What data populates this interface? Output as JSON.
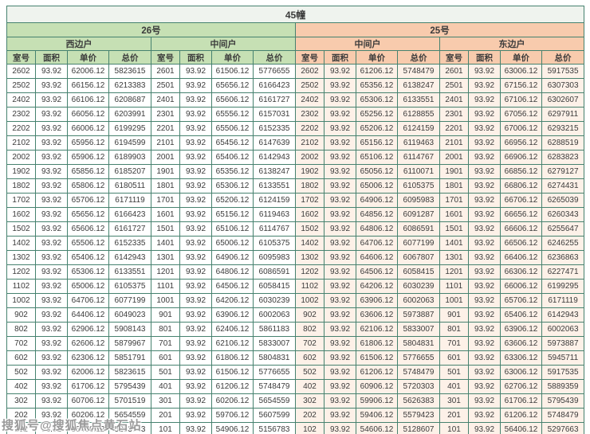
{
  "title": "45幢",
  "sections": [
    {
      "building": "26号",
      "units": [
        "西边户",
        "中间户"
      ]
    },
    {
      "building": "25号",
      "units": [
        "中间户",
        "东边户"
      ]
    }
  ],
  "column_headers": [
    "室号",
    "面积",
    "单价",
    "总价"
  ],
  "watermark": "搜狐号@搜狐焦点黄石站",
  "colors": {
    "border": "#46826f",
    "title_bg": "#eff3ee",
    "header_green": "#c6e0b4",
    "header_peach": "#f8cbad",
    "cell_green_bg": "#ffffff",
    "cell_peach_bg": "#fdf1e8",
    "text": "#3b3b3b"
  },
  "table": {
    "rows": [
      [
        [
          "2602",
          "93.92",
          "62006.12",
          "5823615"
        ],
        [
          "2601",
          "93.92",
          "61506.12",
          "5776655"
        ],
        [
          "2602",
          "93.92",
          "61206.12",
          "5748479"
        ],
        [
          "2601",
          "93.92",
          "63006.12",
          "5917535"
        ]
      ],
      [
        [
          "2502",
          "93.92",
          "66156.12",
          "6213383"
        ],
        [
          "2501",
          "93.92",
          "65656.12",
          "6166423"
        ],
        [
          "2502",
          "93.92",
          "65356.12",
          "6138247"
        ],
        [
          "2501",
          "93.92",
          "67156.12",
          "6307303"
        ]
      ],
      [
        [
          "2402",
          "93.92",
          "66106.12",
          "6208687"
        ],
        [
          "2401",
          "93.92",
          "65606.12",
          "6161727"
        ],
        [
          "2402",
          "93.92",
          "65306.12",
          "6133551"
        ],
        [
          "2401",
          "93.92",
          "67106.12",
          "6302607"
        ]
      ],
      [
        [
          "2302",
          "93.92",
          "66056.12",
          "6203991"
        ],
        [
          "2301",
          "93.92",
          "65556.12",
          "6157031"
        ],
        [
          "2302",
          "93.92",
          "65256.12",
          "6128855"
        ],
        [
          "2301",
          "93.92",
          "67056.12",
          "6297911"
        ]
      ],
      [
        [
          "2202",
          "93.92",
          "66006.12",
          "6199295"
        ],
        [
          "2201",
          "93.92",
          "65506.12",
          "6152335"
        ],
        [
          "2202",
          "93.92",
          "65206.12",
          "6124159"
        ],
        [
          "2201",
          "93.92",
          "67006.12",
          "6293215"
        ]
      ],
      [
        [
          "2102",
          "93.92",
          "65956.12",
          "6194599"
        ],
        [
          "2101",
          "93.92",
          "65456.12",
          "6147639"
        ],
        [
          "2102",
          "93.92",
          "65156.12",
          "6119463"
        ],
        [
          "2101",
          "93.92",
          "66956.12",
          "6288519"
        ]
      ],
      [
        [
          "2002",
          "93.92",
          "65906.12",
          "6189903"
        ],
        [
          "2001",
          "93.92",
          "65406.12",
          "6142943"
        ],
        [
          "2002",
          "93.92",
          "65106.12",
          "6114767"
        ],
        [
          "2001",
          "93.92",
          "66906.12",
          "6283823"
        ]
      ],
      [
        [
          "1902",
          "93.92",
          "65856.12",
          "6185207"
        ],
        [
          "1901",
          "93.92",
          "65356.12",
          "6138247"
        ],
        [
          "1902",
          "93.92",
          "65056.12",
          "6110071"
        ],
        [
          "1901",
          "93.92",
          "66856.12",
          "6279127"
        ]
      ],
      [
        [
          "1802",
          "93.92",
          "65806.12",
          "6180511"
        ],
        [
          "1801",
          "93.92",
          "65306.12",
          "6133551"
        ],
        [
          "1802",
          "93.92",
          "65006.12",
          "6105375"
        ],
        [
          "1801",
          "93.92",
          "66806.12",
          "6274431"
        ]
      ],
      [
        [
          "1702",
          "93.92",
          "65706.12",
          "6171119"
        ],
        [
          "1701",
          "93.92",
          "65206.12",
          "6124159"
        ],
        [
          "1702",
          "93.92",
          "64906.12",
          "6095983"
        ],
        [
          "1701",
          "93.92",
          "66706.12",
          "6265039"
        ]
      ],
      [
        [
          "1602",
          "93.92",
          "65656.12",
          "6166423"
        ],
        [
          "1601",
          "93.92",
          "65156.12",
          "6119463"
        ],
        [
          "1602",
          "93.92",
          "64856.12",
          "6091287"
        ],
        [
          "1601",
          "93.92",
          "66656.12",
          "6260343"
        ]
      ],
      [
        [
          "1502",
          "93.92",
          "65606.12",
          "6161727"
        ],
        [
          "1501",
          "93.92",
          "65106.12",
          "6114767"
        ],
        [
          "1502",
          "93.92",
          "64806.12",
          "6086591"
        ],
        [
          "1501",
          "93.92",
          "66606.12",
          "6255647"
        ]
      ],
      [
        [
          "1402",
          "93.92",
          "65506.12",
          "6152335"
        ],
        [
          "1401",
          "93.92",
          "65006.12",
          "6105375"
        ],
        [
          "1402",
          "93.92",
          "64706.12",
          "6077199"
        ],
        [
          "1401",
          "93.92",
          "66506.12",
          "6246255"
        ]
      ],
      [
        [
          "1302",
          "93.92",
          "65406.12",
          "6142943"
        ],
        [
          "1301",
          "93.92",
          "64906.12",
          "6095983"
        ],
        [
          "1302",
          "93.92",
          "64606.12",
          "6067807"
        ],
        [
          "1301",
          "93.92",
          "66406.12",
          "6236863"
        ]
      ],
      [
        [
          "1202",
          "93.92",
          "65306.12",
          "6133551"
        ],
        [
          "1201",
          "93.92",
          "64806.12",
          "6086591"
        ],
        [
          "1202",
          "93.92",
          "64506.12",
          "6058415"
        ],
        [
          "1201",
          "93.92",
          "66306.12",
          "6227471"
        ]
      ],
      [
        [
          "1102",
          "93.92",
          "65006.12",
          "6105375"
        ],
        [
          "1101",
          "93.92",
          "64506.12",
          "6058415"
        ],
        [
          "1102",
          "93.92",
          "64206.12",
          "6030239"
        ],
        [
          "1101",
          "93.92",
          "66006.12",
          "6199295"
        ]
      ],
      [
        [
          "1002",
          "93.92",
          "64706.12",
          "6077199"
        ],
        [
          "1001",
          "93.92",
          "64206.12",
          "6030239"
        ],
        [
          "1002",
          "93.92",
          "63906.12",
          "6002063"
        ],
        [
          "1001",
          "93.92",
          "65706.12",
          "6171119"
        ]
      ],
      [
        [
          "902",
          "93.92",
          "64406.12",
          "6049023"
        ],
        [
          "901",
          "93.92",
          "63906.12",
          "6002063"
        ],
        [
          "902",
          "93.92",
          "63606.12",
          "5973887"
        ],
        [
          "901",
          "93.92",
          "65406.12",
          "6142943"
        ]
      ],
      [
        [
          "802",
          "93.92",
          "62906.12",
          "5908143"
        ],
        [
          "801",
          "93.92",
          "62406.12",
          "5861183"
        ],
        [
          "802",
          "93.92",
          "62106.12",
          "5833007"
        ],
        [
          "801",
          "93.92",
          "63906.12",
          "6002063"
        ]
      ],
      [
        [
          "702",
          "93.92",
          "62606.12",
          "5879967"
        ],
        [
          "701",
          "93.92",
          "62106.12",
          "5833007"
        ],
        [
          "702",
          "93.92",
          "61806.12",
          "5804831"
        ],
        [
          "701",
          "93.92",
          "63606.12",
          "5973887"
        ]
      ],
      [
        [
          "602",
          "93.92",
          "62306.12",
          "5851791"
        ],
        [
          "601",
          "93.92",
          "61806.12",
          "5804831"
        ],
        [
          "602",
          "93.92",
          "61506.12",
          "5776655"
        ],
        [
          "601",
          "93.92",
          "63306.12",
          "5945711"
        ]
      ],
      [
        [
          "502",
          "93.92",
          "62006.12",
          "5823615"
        ],
        [
          "501",
          "93.92",
          "61506.12",
          "5776655"
        ],
        [
          "502",
          "93.92",
          "61206.12",
          "5748479"
        ],
        [
          "501",
          "93.92",
          "63006.12",
          "5917535"
        ]
      ],
      [
        [
          "402",
          "93.92",
          "61706.12",
          "5795439"
        ],
        [
          "401",
          "93.92",
          "61206.12",
          "5748479"
        ],
        [
          "402",
          "93.92",
          "60906.12",
          "5720303"
        ],
        [
          "401",
          "93.92",
          "62706.12",
          "5889359"
        ]
      ],
      [
        [
          "302",
          "93.92",
          "60706.12",
          "5701519"
        ],
        [
          "301",
          "93.92",
          "60206.12",
          "5654559"
        ],
        [
          "302",
          "93.92",
          "59906.12",
          "5626383"
        ],
        [
          "301",
          "93.92",
          "61706.12",
          "5795439"
        ]
      ],
      [
        [
          "202",
          "93.92",
          "60206.12",
          "5654559"
        ],
        [
          "201",
          "93.92",
          "59706.12",
          "5607599"
        ],
        [
          "202",
          "93.92",
          "59406.12",
          "5579423"
        ],
        [
          "201",
          "93.92",
          "61206.12",
          "5748479"
        ]
      ],
      [
        [
          "102",
          "93.92",
          "55406.12",
          "5203743"
        ],
        [
          "101",
          "93.92",
          "54906.12",
          "5156783"
        ],
        [
          "102",
          "93.92",
          "54606.12",
          "5128607"
        ],
        [
          "101",
          "93.92",
          "56406.12",
          "5297663"
        ]
      ]
    ]
  }
}
